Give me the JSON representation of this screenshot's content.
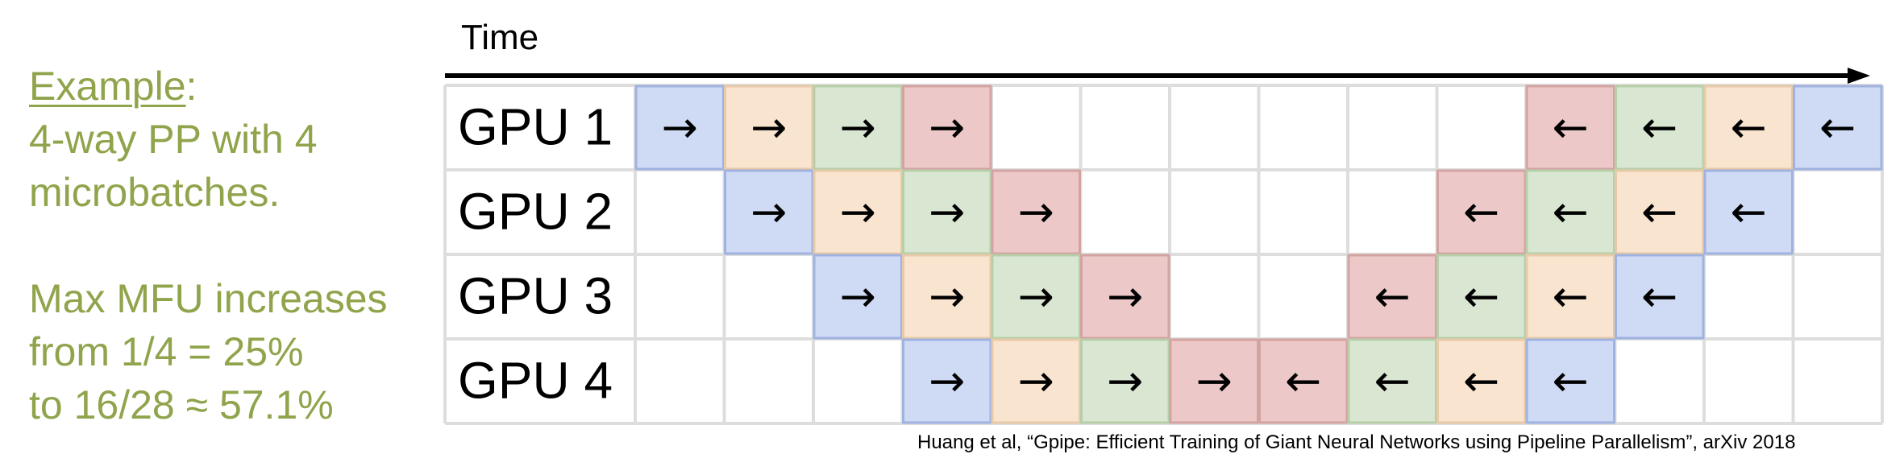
{
  "left_text": {
    "example_word": "Example",
    "example_colon": ":",
    "line_2": "4-way PP with 4",
    "line_3": "microbatches.",
    "line_4": "Max MFU increases",
    "line_5": "from 1/4 = 25%",
    "line_6": "to 16/28 ≈ 57.1%",
    "color": "#8fa44b"
  },
  "time_label": "Time",
  "gpus": [
    "GPU 1",
    "GPU 2",
    "GPU 3",
    "GPU 4"
  ],
  "forward_symbol": "→",
  "backward_symbol": "←",
  "microbatch_colors": {
    "blue": {
      "fill": "#cfdaf5",
      "border": "#9fb2e0"
    },
    "orange": {
      "fill": "#f9e4cf",
      "border": "#e8c9a8"
    },
    "green": {
      "fill": "#d9e7d2",
      "border": "#b6cfa9"
    },
    "red": {
      "fill": "#ecc9c8",
      "border": "#d3a3a1"
    }
  },
  "schedule": [
    [
      "F:blue",
      "F:orange",
      "F:green",
      "F:red",
      "",
      "",
      "",
      "",
      "",
      "",
      "B:red",
      "B:green",
      "B:orange",
      "B:blue"
    ],
    [
      "",
      "F:blue",
      "F:orange",
      "F:green",
      "F:red",
      "",
      "",
      "",
      "",
      "B:red",
      "B:green",
      "B:orange",
      "B:blue",
      ""
    ],
    [
      "",
      "",
      "F:blue",
      "F:orange",
      "F:green",
      "F:red",
      "",
      "",
      "B:red",
      "B:green",
      "B:orange",
      "B:blue",
      "",
      ""
    ],
    [
      "",
      "",
      "",
      "F:blue",
      "F:orange",
      "F:green",
      "F:red",
      "B:red",
      "B:green",
      "B:orange",
      "B:blue",
      "",
      "",
      ""
    ]
  ],
  "citation": "Huang et al, “Gpipe: Efficient Training of Giant Neural Networks using Pipeline Parallelism”, arXiv 2018"
}
